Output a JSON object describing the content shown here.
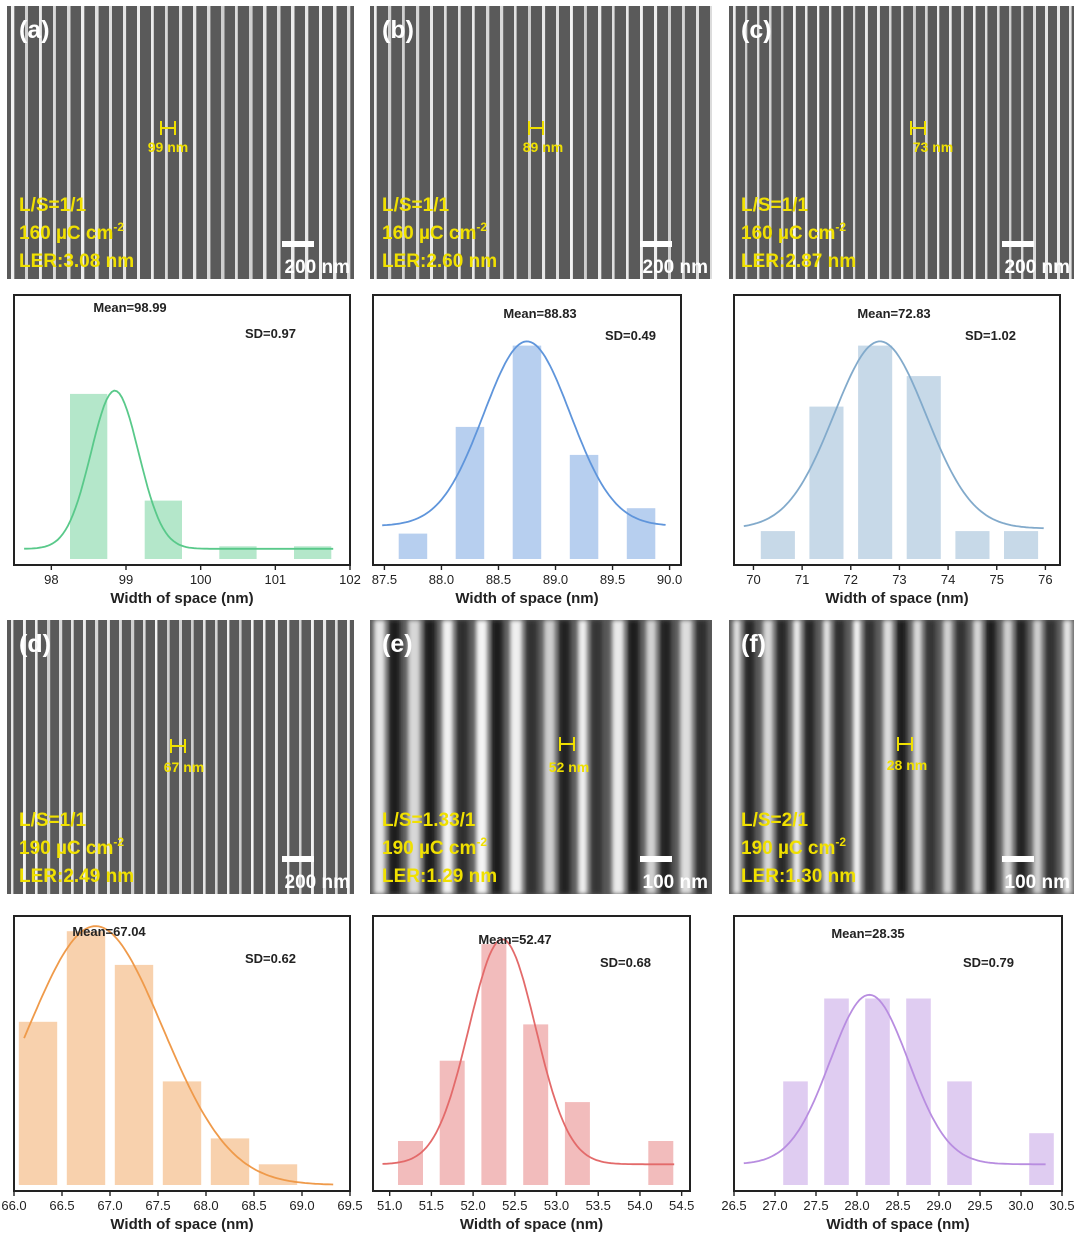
{
  "sem_images": [
    {
      "label": "(a)",
      "ls": "L/S=1/1",
      "dose": "160 µC cm",
      "dose_exp": "-2",
      "ler": "LER:3.08 nm",
      "marker": "99 nm",
      "scale": "200 nm"
    },
    {
      "label": "(b)",
      "ls": "L/S=1/1",
      "dose": "160 µC cm",
      "dose_exp": "-2",
      "ler": "LER:2.60 nm",
      "marker": "89 nm",
      "scale": "200 nm"
    },
    {
      "label": "(c)",
      "ls": "L/S=1/1",
      "dose": "160 µC cm",
      "dose_exp": "-2",
      "ler": "LER:2.87 nm",
      "marker": "73 nm",
      "scale": "200 nm"
    },
    {
      "label": "(d)",
      "ls": "L/S=1/1",
      "dose": "190 µC cm",
      "dose_exp": "-2",
      "ler": "LER:2.49 nm",
      "marker": "67 nm",
      "scale": "200 nm"
    },
    {
      "label": "(e)",
      "ls": "L/S=1.33/1",
      "dose": "190 µC cm",
      "dose_exp": "-2",
      "ler": "LER:1.29 nm",
      "marker": "52 nm",
      "scale": "100 nm"
    },
    {
      "label": "(f)",
      "ls": "L/S=2/1",
      "dose": "190 µC cm",
      "dose_exp": "-2",
      "ler": "LER:1.30 nm",
      "marker": "28 nm",
      "scale": "100 nm"
    }
  ],
  "colors": {
    "annotation": "#f0e000",
    "a": "#59c98a",
    "b": "#5f95db",
    "c": "#82aacb",
    "d": "#ef9a4a",
    "e": "#e36a6a",
    "f": "#b88de0"
  },
  "chart_data": [
    {
      "type": "bar",
      "panel": "a",
      "xlabel": "Width of space (nm)",
      "xlim": [
        97.5,
        102
      ],
      "ticks": [
        "98",
        "99",
        "100",
        "101",
        "102"
      ],
      "tick_values": [
        98,
        99,
        100,
        101,
        102
      ],
      "bin_width": 0.5,
      "bin_centers": [
        98.5,
        99.5,
        100.5,
        101.5
      ],
      "counts": [
        65,
        23,
        5,
        5
      ],
      "ymax": 100,
      "mean_label": "Mean=98.99",
      "sd_label": "SD=0.97",
      "fit_mean": 98.85,
      "fit_sd": 0.32,
      "fit_base": 4
    },
    {
      "type": "bar",
      "panel": "b",
      "xlabel": "Width of space (nm)",
      "xlim": [
        87.4,
        90.1
      ],
      "ticks": [
        "87.5",
        "88.0",
        "88.5",
        "89.0",
        "89.5",
        "90.0"
      ],
      "tick_values": [
        87.5,
        88.0,
        88.5,
        89.0,
        89.5,
        90.0
      ],
      "bin_width": 0.25,
      "bin_centers": [
        87.75,
        88.25,
        88.75,
        89.25,
        89.75
      ],
      "counts": [
        10,
        52,
        84,
        41,
        20
      ],
      "ymax": 100,
      "mean_label": "Mean=88.83",
      "sd_label": "SD=0.49",
      "fit_mean": 88.75,
      "fit_sd": 0.38,
      "fit_base": 13
    },
    {
      "type": "bar",
      "panel": "c",
      "xlabel": "Width of space (nm)",
      "xlim": [
        69.6,
        76.3
      ],
      "ticks": [
        "70",
        "71",
        "72",
        "73",
        "74",
        "75",
        "76"
      ],
      "tick_values": [
        70,
        71,
        72,
        73,
        74,
        75,
        76
      ],
      "bin_width": 0.7,
      "bin_centers": [
        70.5,
        71.5,
        72.5,
        73.5,
        74.5,
        75.5
      ],
      "counts": [
        11,
        60,
        84,
        72,
        11,
        11
      ],
      "ymax": 100,
      "mean_label": "Mean=72.83",
      "sd_label": "SD=1.02",
      "fit_mean": 72.6,
      "fit_sd": 0.95,
      "fit_base": 12
    },
    {
      "type": "bar",
      "panel": "d",
      "xlabel": "Width of space (nm)",
      "xlim": [
        66.0,
        69.5
      ],
      "ticks": [
        "66.0",
        "66.5",
        "67.0",
        "67.5",
        "68.0",
        "68.5",
        "69.0",
        "69.5"
      ],
      "tick_values": [
        66.0,
        66.5,
        67.0,
        67.5,
        68.0,
        68.5,
        69.0,
        69.5
      ],
      "bin_width": 0.4,
      "bin_centers": [
        66.25,
        66.75,
        67.25,
        67.75,
        68.25,
        68.75
      ],
      "counts": [
        63,
        98,
        85,
        40,
        18,
        8
      ],
      "ymax": 100,
      "mean_label": "Mean=67.04",
      "sd_label": "SD=0.62",
      "fit_mean": 66.85,
      "fit_sd": 0.7,
      "fit_base": 0
    },
    {
      "type": "bar",
      "panel": "e",
      "xlabel": "Width of space (nm)",
      "xlim": [
        50.8,
        54.6
      ],
      "ticks": [
        "51.0",
        "51.5",
        "52.0",
        "52.5",
        "53.0",
        "53.5",
        "54.0",
        "54.5"
      ],
      "tick_values": [
        51.0,
        51.5,
        52.0,
        52.5,
        53.0,
        53.5,
        54.0,
        54.5
      ],
      "bin_width": 0.3,
      "bin_centers": [
        51.25,
        51.75,
        52.25,
        52.75,
        53.25,
        54.25
      ],
      "counts": [
        17,
        48,
        93,
        62,
        32,
        17
      ],
      "ymax": 100,
      "mean_label": "Mean=52.47",
      "sd_label": "SD=0.68",
      "fit_mean": 52.35,
      "fit_sd": 0.4,
      "fit_base": 8
    },
    {
      "type": "bar",
      "panel": "f",
      "xlabel": "Width of space (nm)",
      "xlim": [
        26.5,
        30.5
      ],
      "ticks": [
        "26.5",
        "27.0",
        "27.5",
        "28.0",
        "28.5",
        "29.0",
        "29.5",
        "30.0",
        "30.5"
      ],
      "tick_values": [
        26.5,
        27.0,
        27.5,
        28.0,
        28.5,
        29.0,
        29.5,
        30.0,
        30.5
      ],
      "bin_width": 0.3,
      "bin_centers": [
        27.25,
        27.75,
        28.25,
        28.75,
        29.25,
        30.25
      ],
      "counts": [
        40,
        72,
        72,
        72,
        40,
        20
      ],
      "ymax": 100,
      "mean_label": "Mean=28.35",
      "sd_label": "SD=0.79",
      "fit_mean": 28.15,
      "fit_sd": 0.48,
      "fit_base": 8
    }
  ]
}
